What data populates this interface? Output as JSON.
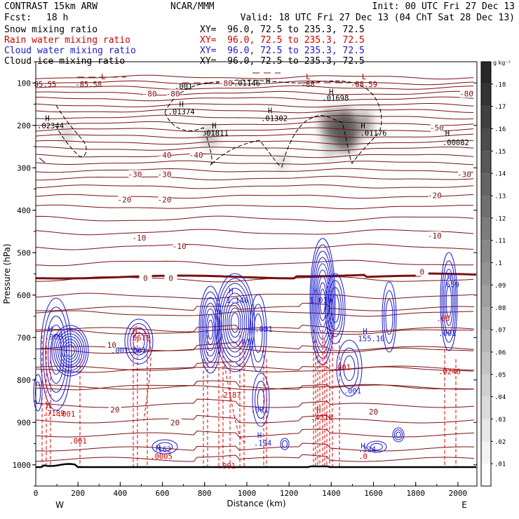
{
  "header": {
    "model": "CONTRAST 15km ARW",
    "center": "NCAR/MMM",
    "init": "Init: 00 UTC Fri 27 Dec 13",
    "fcst_label": "Fcst:",
    "fcst_value": "18 h",
    "valid": "Valid: 18 UTC Fri 27 Dec 13 (04 ChT Sat 28 Dec 13)"
  },
  "fields": [
    {
      "name": "Snow mixing ratio",
      "xy": "XY=  96.0, 72.5 to 235.3, 72.5",
      "color": "#000000"
    },
    {
      "name": "Rain water mixing ratio",
      "xy": "XY=  96.0, 72.5 to 235.3, 72.5",
      "color": "#cc0000"
    },
    {
      "name": "Cloud water mixing ratio",
      "xy": "XY=  96.0, 72.5 to 235.3, 72.5",
      "color": "#1a1acc"
    },
    {
      "name": "Cloud ice mixing ratio",
      "xy": "XY=  96.0, 72.5 to 235.3, 72.5",
      "color": "#000000"
    }
  ],
  "chart_data": {
    "type": "contour",
    "xlabel": "Distance (km)",
    "ylabel": "Pressure (hPa)",
    "xlim": [
      0,
      2090
    ],
    "ylim": [
      1050,
      50
    ],
    "x_ticks": [
      "0",
      "200",
      "400",
      "600",
      "800",
      "1000",
      "1200",
      "1400",
      "1600",
      "1800",
      "2000"
    ],
    "y_ticks": [
      "100",
      "200",
      "300",
      "400",
      "500",
      "600",
      "700",
      "800",
      "900",
      "1000"
    ],
    "x_endpoints": {
      "left": "W",
      "right": "E"
    },
    "colorbar": {
      "unit": "g kg⁻¹",
      "levels": [
        ".01",
        ".02",
        ".03",
        ".04",
        ".05",
        ".06",
        ".07",
        ".08",
        ".09",
        ".1",
        ".11",
        ".12",
        ".13",
        ".14",
        ".15",
        ".16",
        ".17",
        ".18"
      ]
    },
    "temperature_labels": [
      {
        "text": "-80",
        "x": 900,
        "p": 100
      },
      {
        "text": "-80",
        "x": 540,
        "p": 125
      },
      {
        "text": "-80",
        "x": 650,
        "p": 125
      },
      {
        "text": "-80",
        "x": 2040,
        "p": 125
      },
      {
        "text": "-50",
        "x": 1900,
        "p": 205
      },
      {
        "text": "-40",
        "x": 610,
        "p": 270
      },
      {
        "text": "-40",
        "x": 760,
        "p": 270
      },
      {
        "text": "-30",
        "x": 470,
        "p": 315
      },
      {
        "text": "-30",
        "x": 610,
        "p": 315
      },
      {
        "text": "-30",
        "x": 2030,
        "p": 315
      },
      {
        "text": "-20",
        "x": 420,
        "p": 375
      },
      {
        "text": "-20",
        "x": 610,
        "p": 375
      },
      {
        "text": "-20",
        "x": 1890,
        "p": 365
      },
      {
        "text": "-10",
        "x": 490,
        "p": 465
      },
      {
        "text": "-10",
        "x": 680,
        "p": 485
      },
      {
        "text": "-10",
        "x": 1890,
        "p": 460
      },
      {
        "text": "0",
        "x": 520,
        "p": 560
      },
      {
        "text": "0",
        "x": 640,
        "p": 560
      },
      {
        "text": "0",
        "x": 1830,
        "p": 545
      },
      {
        "text": "10",
        "x": 360,
        "p": 718
      },
      {
        "text": "20",
        "x": 375,
        "p": 870
      },
      {
        "text": "20",
        "x": 660,
        "p": 900
      },
      {
        "text": "20",
        "x": 1600,
        "p": 875
      }
    ],
    "extrema_labels": [
      {
        "text": "L",
        "x": 320,
        "p": 85,
        "color": "#7a0000"
      },
      {
        "text": "85.55",
        "x": 45,
        "p": 103,
        "color": "#7a0000"
      },
      {
        "text": "-85.58",
        "x": 250,
        "p": 103,
        "color": "#7a0000"
      },
      {
        "text": "L",
        "x": 1290,
        "p": 85,
        "color": "#7a0000"
      },
      {
        "text": "-88",
        "x": 1290,
        "p": 103,
        "color": "#7a0000"
      },
      {
        "text": "L",
        "x": 1555,
        "p": 85,
        "color": "#7a0000"
      },
      {
        "text": "-88.59",
        "x": 1555,
        "p": 103,
        "color": "#7a0000"
      },
      {
        "text": ".001",
        "x": 700,
        "p": 108,
        "color": "#000000"
      },
      {
        "text": ".01146",
        "x": 1000,
        "p": 100,
        "color": "#000000"
      },
      {
        "text": "H",
        "x": 1100,
        "p": 95,
        "color": "#000000"
      },
      {
        "text": "H",
        "x": 1400,
        "p": 120,
        "color": "#000000"
      },
      {
        "text": ".01698",
        "x": 1420,
        "p": 135,
        "color": "#000000"
      },
      {
        "text": "H",
        "x": 690,
        "p": 150,
        "color": "#000000"
      },
      {
        "text": ".01374",
        "x": 690,
        "p": 167,
        "color": "#000000"
      },
      {
        "text": "H",
        "x": 1110,
        "p": 165,
        "color": "#000000"
      },
      {
        "text": ".01302",
        "x": 1130,
        "p": 183,
        "color": "#000000"
      },
      {
        "text": "H",
        "x": 55,
        "p": 183,
        "color": "#000000"
      },
      {
        "text": ".02344",
        "x": 70,
        "p": 200,
        "color": "#000000"
      },
      {
        "text": "H",
        "x": 845,
        "p": 200,
        "color": "#000000"
      },
      {
        "text": ".01811",
        "x": 850,
        "p": 218,
        "color": "#000000"
      },
      {
        "text": "H",
        "x": 1550,
        "p": 200,
        "color": "#000000"
      },
      {
        "text": ".01176",
        "x": 1600,
        "p": 218,
        "color": "#000000"
      },
      {
        "text": "H",
        "x": 1950,
        "p": 218,
        "color": "#000000"
      },
      {
        "text": ".00082",
        "x": 1990,
        "p": 240,
        "color": "#000000"
      },
      {
        "text": "H",
        "x": 925,
        "p": 590,
        "color": "#1a1acc"
      },
      {
        "text": "1.146",
        "x": 955,
        "p": 612,
        "color": "#1a1acc"
      },
      {
        "text": "H",
        "x": 1325,
        "p": 590,
        "color": "#1a1acc"
      },
      {
        "text": "1.019",
        "x": 1350,
        "p": 612,
        "color": "#1a1acc"
      },
      {
        "text": "H",
        "x": 1960,
        "p": 555,
        "color": "#1a1acc"
      },
      {
        "text": ".659",
        "x": 1965,
        "p": 575,
        "color": "#1a1acc"
      },
      {
        "text": "H",
        "x": 70,
        "p": 680,
        "color": "#1a1acc"
      },
      {
        "text": ".906",
        "x": 85,
        "p": 698,
        "color": "#1a1acc"
      },
      {
        "text": "H",
        "x": 470,
        "p": 685,
        "color": "#cc0000"
      },
      {
        "text": ".0672",
        "x": 490,
        "p": 700,
        "color": "#cc0000"
      },
      {
        "text": ".001.001",
        "x": 440,
        "p": 730,
        "color": "#1a1acc"
      },
      {
        "text": "H",
        "x": 1560,
        "p": 685,
        "color": "#1a1acc"
      },
      {
        "text": "155.10",
        "x": 1590,
        "p": 702,
        "color": "#1a1acc"
      },
      {
        "text": ".001",
        "x": 1080,
        "p": 680,
        "color": "#1a1acc"
      },
      {
        "text": ".01",
        "x": 985,
        "p": 710,
        "color": "#1a1acc"
      },
      {
        "text": ".001",
        "x": 1950,
        "p": 690,
        "color": "#1a1acc"
      },
      {
        "text": ".00",
        "x": 1930,
        "p": 655,
        "color": "#cc0000"
      },
      {
        "text": ".001",
        "x": 1450,
        "p": 770,
        "color": "#cc0000"
      },
      {
        "text": ".001",
        "x": 1500,
        "p": 825,
        "color": "#1a1acc"
      },
      {
        "text": ".0246",
        "x": 1960,
        "p": 780,
        "color": "#cc0000"
      },
      {
        "text": ".2187",
        "x": 920,
        "p": 835,
        "color": "#cc0000"
      },
      {
        "text": ".001",
        "x": 1060,
        "p": 870,
        "color": "#1a1acc"
      },
      {
        "text": "H",
        "x": 60,
        "p": 860,
        "color": "#cc0000"
      },
      {
        "text": ".7189",
        "x": 85,
        "p": 878,
        "color": "#cc0000"
      },
      {
        "text": ".001",
        "x": 145,
        "p": 880,
        "color": "#cc0000"
      },
      {
        "text": "H",
        "x": 1340,
        "p": 870,
        "color": "#cc0000"
      },
      {
        "text": ".4318",
        "x": 1355,
        "p": 888,
        "color": "#cc0000"
      },
      {
        "text": ".001",
        "x": 200,
        "p": 943,
        "color": "#cc0000"
      },
      {
        "text": "H",
        "x": 1060,
        "p": 930,
        "color": "#1a1acc"
      },
      {
        "text": ".194",
        "x": 1075,
        "p": 948,
        "color": "#1a1acc"
      },
      {
        "text": "H",
        "x": 580,
        "p": 960,
        "color": "#1a1acc"
      },
      {
        "text": ".162",
        "x": 600,
        "p": 963,
        "color": "#1a1acc"
      },
      {
        "text": ".0005",
        "x": 595,
        "p": 980,
        "color": "#cc0000"
      },
      {
        "text": "H",
        "x": 1550,
        "p": 955,
        "color": "#1a1acc"
      },
      {
        "text": ".334",
        "x": 1570,
        "p": 963,
        "color": "#1a1acc"
      },
      {
        "text": ".0",
        "x": 1550,
        "p": 980,
        "color": "#cc0000"
      },
      {
        "text": ".001",
        "x": 905,
        "p": 1002,
        "color": "#cc0000"
      }
    ]
  }
}
